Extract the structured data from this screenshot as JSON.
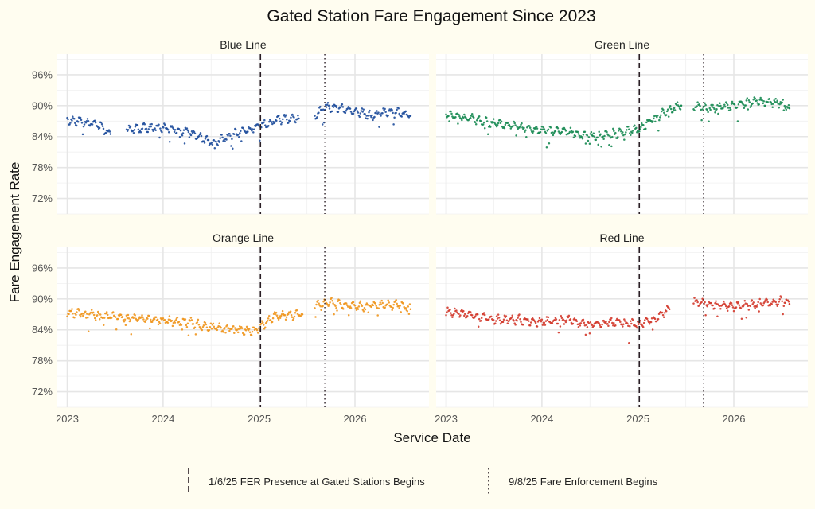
{
  "chart_data": {
    "type": "scatter",
    "title": "Gated Station Fare Engagement Since 2023",
    "xlabel": "Service Date",
    "ylabel": "Fare Engagement Rate",
    "x_ticks": [
      "2023",
      "2024",
      "2025",
      "2026"
    ],
    "x_range": [
      "2022-11-24",
      "2026-10-10"
    ],
    "y_ticks": [
      "72%",
      "78%",
      "84%",
      "90%",
      "96%"
    ],
    "y_range": [
      69,
      100
    ],
    "facets": [
      {
        "name": "Blue Line",
        "color": "#1f4e9c",
        "segments": [
          {
            "x": [
              "2023-01-01",
              "2023-03-01",
              "2023-05-01",
              "2023-06-15"
            ],
            "y": [
              87.2,
              87.0,
              86.2,
              84.5
            ]
          },
          {
            "x": [
              "2023-08-15",
              "2023-11-01",
              "2024-02-01",
              "2024-04-01",
              "2024-06-01",
              "2024-07-01",
              "2024-10-01",
              "2025-01-06",
              "2025-04-01",
              "2025-06-01"
            ],
            "y": [
              85.5,
              85.8,
              85.6,
              85.0,
              83.5,
              82.8,
              84.5,
              86.0,
              87.5,
              87.5
            ]
          },
          {
            "x": [
              "2025-08-01",
              "2025-09-08",
              "2025-11-01",
              "2026-01-01",
              "2026-03-01",
              "2026-05-01",
              "2026-07-01",
              "2026-08-01"
            ],
            "y": [
              88.0,
              89.8,
              89.5,
              89.0,
              88.0,
              88.8,
              88.5,
              88.0
            ]
          }
        ]
      },
      {
        "name": "Green Line",
        "color": "#178a52",
        "segments": [
          {
            "x": [
              "2023-01-01",
              "2023-04-01",
              "2023-07-01",
              "2023-10-01",
              "2024-01-01",
              "2024-04-01",
              "2024-07-01",
              "2024-10-01",
              "2025-01-06",
              "2025-04-01",
              "2025-06-15"
            ],
            "y": [
              88.5,
              87.5,
              86.5,
              86.0,
              85.0,
              85.0,
              84.0,
              84.5,
              85.5,
              88.5,
              90.0
            ]
          },
          {
            "x": [
              "2025-08-01",
              "2025-10-01",
              "2026-01-01",
              "2026-04-01",
              "2026-07-01",
              "2026-08-01"
            ],
            "y": [
              90.0,
              89.5,
              90.0,
              90.8,
              90.5,
              89.5
            ]
          }
        ]
      },
      {
        "name": "Orange Line",
        "color": "#f0961e",
        "segments": [
          {
            "x": [
              "2023-01-01",
              "2023-04-01",
              "2023-07-01",
              "2023-10-01",
              "2024-01-01",
              "2024-04-01",
              "2024-07-01",
              "2024-10-01",
              "2024-12-15",
              "2025-01-06",
              "2025-03-01",
              "2025-06-15"
            ],
            "y": [
              87.5,
              87.0,
              86.5,
              86.2,
              85.8,
              85.5,
              84.5,
              84.2,
              83.8,
              84.5,
              86.8,
              87.0
            ]
          },
          {
            "x": [
              "2025-08-01",
              "2025-10-01",
              "2026-01-01",
              "2026-04-01",
              "2026-07-01",
              "2026-08-01"
            ],
            "y": [
              88.5,
              89.3,
              88.5,
              88.8,
              88.8,
              88.0
            ]
          }
        ]
      },
      {
        "name": "Red Line",
        "color": "#d33a2c",
        "segments": [
          {
            "x": [
              "2023-01-01",
              "2023-04-01",
              "2023-07-01",
              "2023-10-01",
              "2024-01-01",
              "2024-04-01",
              "2024-07-01",
              "2024-10-01",
              "2025-01-06",
              "2025-03-01",
              "2025-05-01"
            ],
            "y": [
              87.5,
              87.0,
              86.0,
              86.0,
              85.5,
              86.0,
              85.0,
              85.5,
              85.0,
              86.0,
              88.0
            ]
          },
          {
            "x": [
              "2025-08-01",
              "2025-10-01",
              "2026-01-01",
              "2026-04-01",
              "2026-07-01",
              "2026-08-01"
            ],
            "y": [
              89.5,
              89.0,
              88.5,
              89.0,
              89.5,
              89.0
            ]
          }
        ]
      }
    ],
    "reference_lines": [
      {
        "date": "2025-01-06",
        "style": "dashed",
        "label": "1/6/25 FER Presence at Gated Stations Begins"
      },
      {
        "date": "2025-09-08",
        "style": "dotted",
        "label": "9/8/25 Fare Enforcement Begins"
      }
    ],
    "grid": true,
    "legend_position": "bottom"
  }
}
